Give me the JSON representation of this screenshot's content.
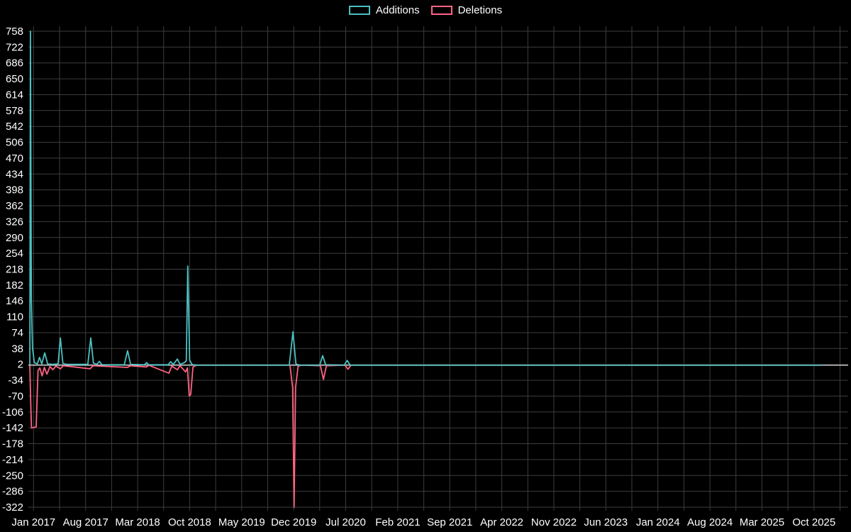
{
  "page": {
    "background": "#000000",
    "text_color": "#ffffff"
  },
  "chart_data": {
    "type": "line",
    "title": "",
    "xlabel": "",
    "ylabel": "",
    "legend_position": "top",
    "grid": {
      "on": true,
      "color": "#3d3d3d",
      "zero_line_color": "#e6e6e6",
      "v_step_months": 3.5
    },
    "y_axis": {
      "max": 758,
      "min": -322,
      "step": 36
    },
    "x_axis": {
      "min_month": -0.7,
      "max_month": 109.6
    },
    "x_tick_labels": [
      "Jan 2017",
      "Aug 2017",
      "Mar 2018",
      "Oct 2018",
      "May 2019",
      "Dec 2019",
      "Jul 2020",
      "Feb 2021",
      "Sep 2021",
      "Apr 2022",
      "Nov 2022",
      "Jun 2023",
      "Jan 2024",
      "Aug 2024",
      "Mar 2025",
      "Oct 2025"
    ],
    "x_tick_months": [
      0,
      7,
      14,
      21,
      28,
      35,
      42,
      49,
      56,
      63,
      70,
      77,
      84,
      91,
      98,
      105
    ],
    "series": [
      {
        "name": "Additions",
        "color": "#4bc0c0",
        "points": [
          [
            -0.5,
            2
          ],
          [
            -0.42,
            758
          ],
          [
            -0.3,
            150
          ],
          [
            -0.15,
            40
          ],
          [
            0.1,
            6
          ],
          [
            0.5,
            3
          ],
          [
            0.8,
            18
          ],
          [
            1.1,
            3
          ],
          [
            1.5,
            28
          ],
          [
            1.9,
            3
          ],
          [
            2.6,
            2
          ],
          [
            3.3,
            3
          ],
          [
            3.6,
            62
          ],
          [
            3.95,
            4
          ],
          [
            4.5,
            2
          ],
          [
            7.3,
            2
          ],
          [
            7.7,
            62
          ],
          [
            8.05,
            5
          ],
          [
            8.5,
            2
          ],
          [
            8.85,
            9
          ],
          [
            9.2,
            1
          ],
          [
            12.2,
            1
          ],
          [
            12.65,
            33
          ],
          [
            13.05,
            2
          ],
          [
            14.9,
            1
          ],
          [
            15.2,
            6
          ],
          [
            15.5,
            1
          ],
          [
            18.1,
            1
          ],
          [
            18.45,
            8
          ],
          [
            18.8,
            2
          ],
          [
            19.35,
            14
          ],
          [
            19.7,
            2
          ],
          [
            20.3,
            6
          ],
          [
            20.55,
            10
          ],
          [
            20.75,
            225
          ],
          [
            21.0,
            12
          ],
          [
            21.3,
            2
          ],
          [
            21.8,
            0
          ],
          [
            34.4,
            0
          ],
          [
            34.9,
            76
          ],
          [
            35.3,
            3
          ],
          [
            35.8,
            0
          ],
          [
            38.5,
            0
          ],
          [
            38.9,
            22
          ],
          [
            39.3,
            1
          ],
          [
            41.8,
            0
          ],
          [
            42.2,
            11
          ],
          [
            42.6,
            0
          ],
          [
            106,
            0
          ]
        ]
      },
      {
        "name": "Deletions",
        "color": "#ff6384",
        "points": [
          [
            -0.5,
            -2
          ],
          [
            -0.38,
            -90
          ],
          [
            -0.28,
            -142
          ],
          [
            0.35,
            -140
          ],
          [
            0.6,
            -12
          ],
          [
            0.85,
            -6
          ],
          [
            1.15,
            -24
          ],
          [
            1.45,
            -5
          ],
          [
            1.8,
            -20
          ],
          [
            2.2,
            -3
          ],
          [
            2.6,
            -10
          ],
          [
            3.0,
            -2
          ],
          [
            3.6,
            -8
          ],
          [
            4.0,
            -1
          ],
          [
            7.6,
            -8
          ],
          [
            8.0,
            -1
          ],
          [
            12.65,
            -5
          ],
          [
            13.0,
            -1
          ],
          [
            15.2,
            -4
          ],
          [
            15.5,
            0
          ],
          [
            18.2,
            -18
          ],
          [
            18.6,
            -2
          ],
          [
            19.35,
            -10
          ],
          [
            19.7,
            -1
          ],
          [
            20.45,
            -15
          ],
          [
            20.7,
            -6
          ],
          [
            20.95,
            -70
          ],
          [
            21.15,
            -66
          ],
          [
            21.45,
            -4
          ],
          [
            21.9,
            0
          ],
          [
            34.5,
            0
          ],
          [
            34.85,
            -50
          ],
          [
            35.05,
            -322
          ],
          [
            35.25,
            -50
          ],
          [
            35.6,
            -2
          ],
          [
            36.0,
            0
          ],
          [
            38.6,
            -1
          ],
          [
            39.0,
            -32
          ],
          [
            39.4,
            -1
          ],
          [
            41.9,
            0
          ],
          [
            42.3,
            -9
          ],
          [
            42.7,
            0
          ],
          [
            106,
            0
          ]
        ]
      }
    ]
  }
}
